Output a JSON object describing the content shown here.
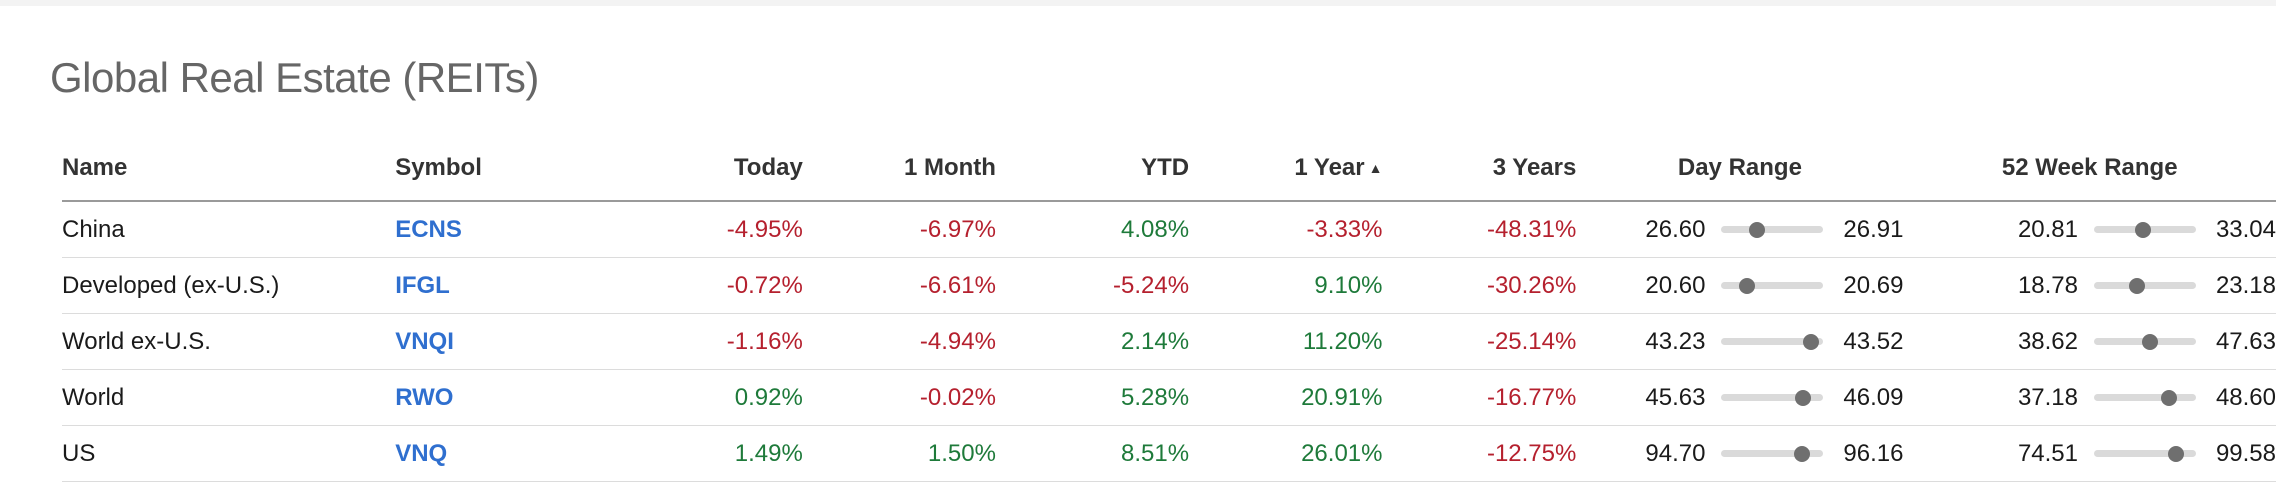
{
  "title": "Global Real Estate (REITs)",
  "columns": {
    "name": "Name",
    "symbol": "Symbol",
    "today": "Today",
    "month": "1 Month",
    "ytd": "YTD",
    "year": "1 Year",
    "year_sort_icon": "▲",
    "three_years": "3 Years",
    "day_range": "Day Range",
    "week52_range": "52 Week Range"
  },
  "colors": {
    "positive": "#1e7a3a",
    "negative": "#b5202e",
    "link": "#2f6fcf"
  },
  "rows": [
    {
      "name": "China",
      "symbol": "ECNS",
      "today": "-4.95%",
      "month": "-6.97%",
      "ytd": "4.08%",
      "year": "-3.33%",
      "three_years": "-48.31%",
      "day_low": "26.60",
      "day_high": "26.91",
      "day_pos": 0.35,
      "wk_low": "20.81",
      "wk_high": "33.04",
      "wk_pos": 0.48
    },
    {
      "name": "Developed (ex-U.S.)",
      "symbol": "IFGL",
      "today": "-0.72%",
      "month": "-6.61%",
      "ytd": "-5.24%",
      "year": "9.10%",
      "three_years": "-30.26%",
      "day_low": "20.60",
      "day_high": "20.69",
      "day_pos": 0.25,
      "wk_low": "18.78",
      "wk_high": "23.18",
      "wk_pos": 0.42
    },
    {
      "name": "World ex-U.S.",
      "symbol": "VNQI",
      "today": "-1.16%",
      "month": "-4.94%",
      "ytd": "2.14%",
      "year": "11.20%",
      "three_years": "-25.14%",
      "day_low": "43.23",
      "day_high": "43.52",
      "day_pos": 0.88,
      "wk_low": "38.62",
      "wk_high": "47.63",
      "wk_pos": 0.55
    },
    {
      "name": "World",
      "symbol": "RWO",
      "today": "0.92%",
      "month": "-0.02%",
      "ytd": "5.28%",
      "year": "20.91%",
      "three_years": "-16.77%",
      "day_low": "45.63",
      "day_high": "46.09",
      "day_pos": 0.8,
      "wk_low": "37.18",
      "wk_high": "48.60",
      "wk_pos": 0.74
    },
    {
      "name": "US",
      "symbol": "VNQ",
      "today": "1.49%",
      "month": "1.50%",
      "ytd": "8.51%",
      "year": "26.01%",
      "three_years": "-12.75%",
      "day_low": "94.70",
      "day_high": "96.16",
      "day_pos": 0.79,
      "wk_low": "74.51",
      "wk_high": "99.58",
      "wk_pos": 0.8
    }
  ]
}
